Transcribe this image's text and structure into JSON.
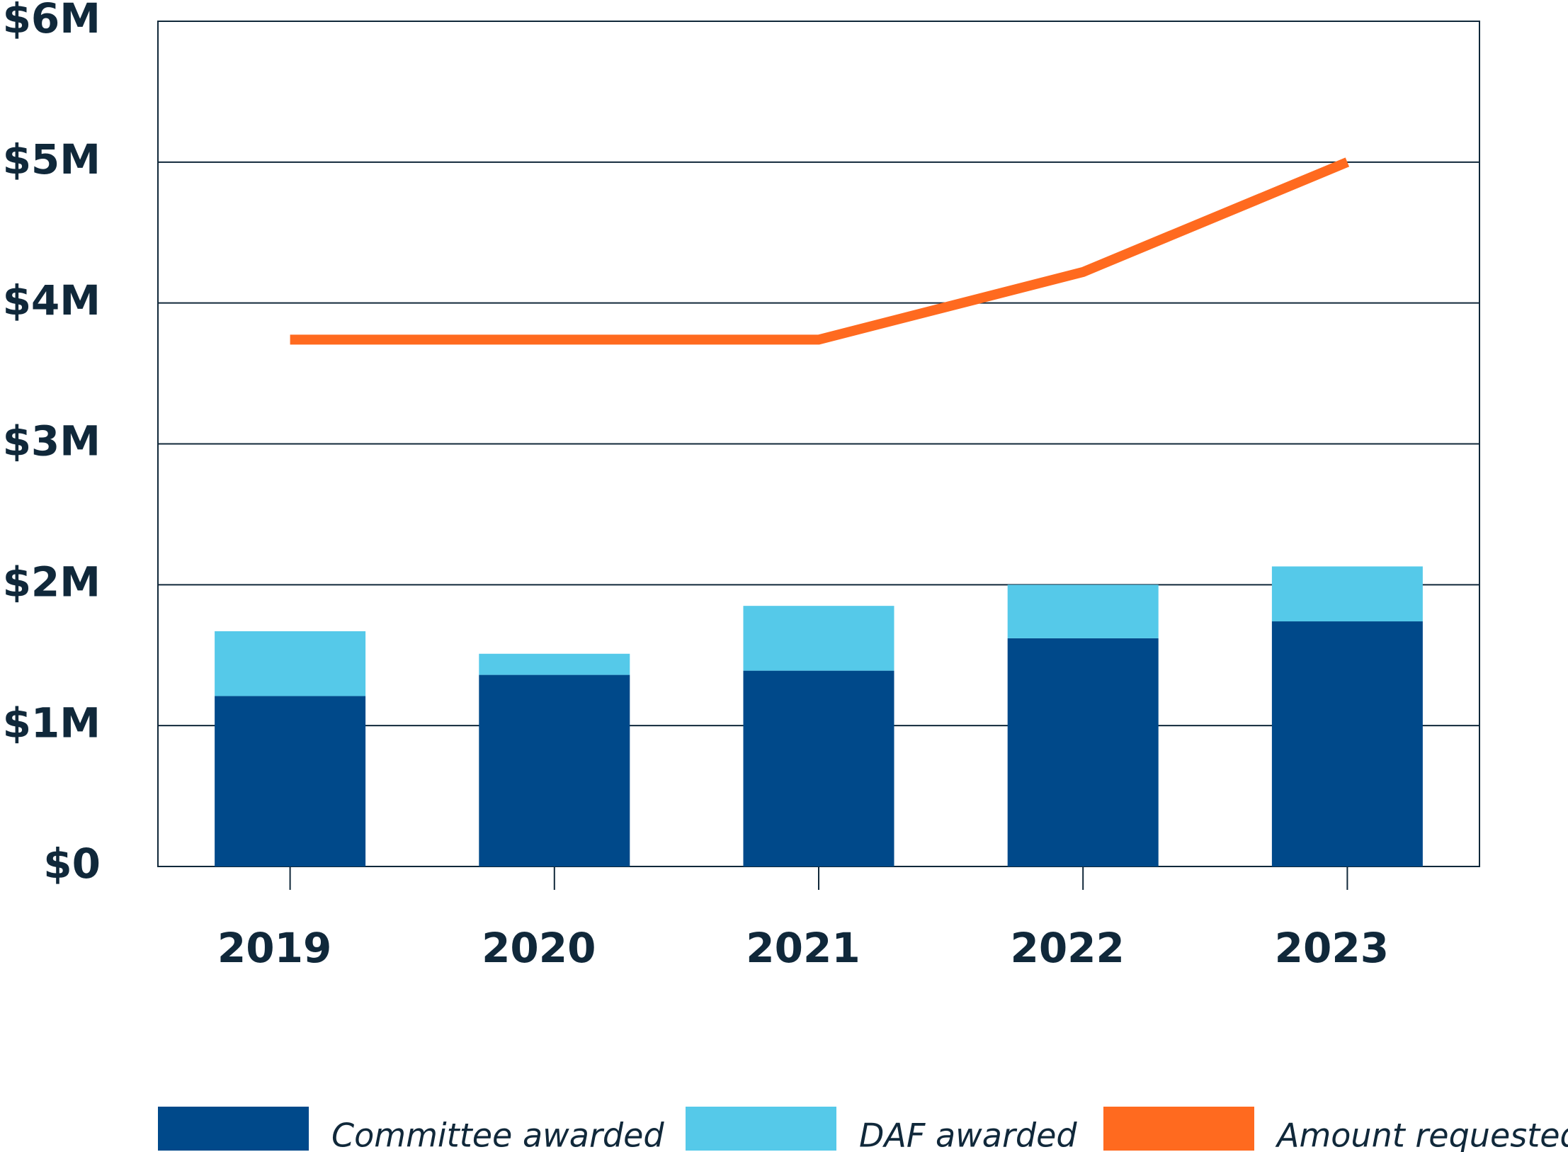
{
  "chart_data": {
    "type": "bar",
    "categories": [
      "2019",
      "2020",
      "2021",
      "2022",
      "2023"
    ],
    "series": [
      {
        "name": "Committee awarded",
        "color": "#00498a",
        "values": [
          1210000,
          1360000,
          1390000,
          1620000,
          1740000
        ]
      },
      {
        "name": "DAF awarded",
        "color": "#55c9e9",
        "values": [
          460000,
          150000,
          460000,
          380000,
          390000
        ]
      },
      {
        "name": "Amount requested",
        "color": "#ff6a1f",
        "type": "line",
        "values": [
          3740000,
          3740000,
          3740000,
          4220000,
          5000000
        ]
      }
    ],
    "stacked": true,
    "ylim": [
      0,
      6000000
    ],
    "yticks": [
      {
        "value": 0,
        "label": "$0"
      },
      {
        "value": 1000000,
        "label": "$1M"
      },
      {
        "value": 2000000,
        "label": "$2M"
      },
      {
        "value": 3000000,
        "label": "$3M"
      },
      {
        "value": 4000000,
        "label": "$4M"
      },
      {
        "value": 5000000,
        "label": "$5M"
      },
      {
        "value": 6000000,
        "label": "$6M"
      }
    ],
    "grid": true,
    "legend": "bottom"
  }
}
